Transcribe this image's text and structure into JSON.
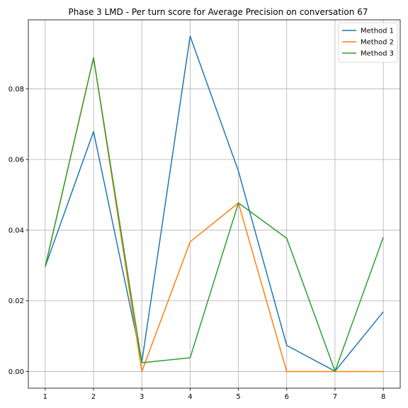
{
  "chart_data": {
    "type": "line",
    "title": "Phase 3 LMD - Per turn score for Average Precision on conversation 67",
    "xlabel": "",
    "ylabel": "",
    "x": [
      1,
      2,
      3,
      4,
      5,
      6,
      7,
      8
    ],
    "xticks": [
      "1",
      "2",
      "3",
      "4",
      "5",
      "6",
      "7",
      "8"
    ],
    "xlim": [
      0.65,
      8.35
    ],
    "yticks": [
      "0.00",
      "0.02",
      "0.04",
      "0.06",
      "0.08"
    ],
    "ytick_values": [
      0,
      0.02,
      0.04,
      0.06,
      0.08
    ],
    "ylim": [
      -0.0047,
      0.0995
    ],
    "grid": true,
    "legend_position": "top-right",
    "series": [
      {
        "name": "Method 1",
        "color": "#1f77b4",
        "values": [
          0.0297,
          0.0679,
          0.0027,
          0.0949,
          0.0567,
          0.0074,
          0.0001,
          0.0169
        ]
      },
      {
        "name": "Method 2",
        "color": "#ff7f0e",
        "values": [
          0.0297,
          0.0888,
          0.0,
          0.0367,
          0.0477,
          0.0,
          0.0,
          0.0
        ]
      },
      {
        "name": "Method 3",
        "color": "#2ca02c",
        "values": [
          0.0297,
          0.0888,
          0.0025,
          0.0039,
          0.0477,
          0.0377,
          0.0001,
          0.038
        ]
      }
    ]
  }
}
